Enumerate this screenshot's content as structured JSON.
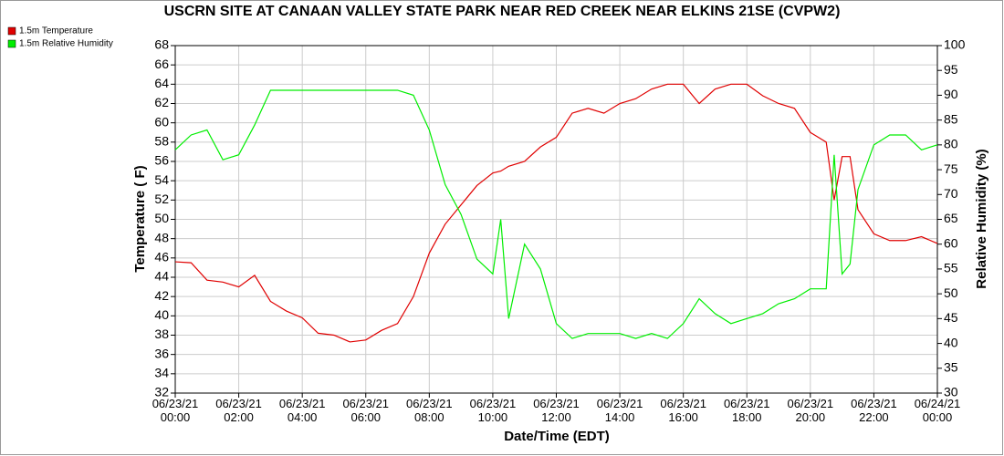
{
  "chart_data": {
    "type": "line",
    "title": "USCRN SITE AT CANAAN VALLEY STATE PARK NEAR RED CREEK NEAR ELKINS 21SE (CVPW2)",
    "x_label": "Date/Time (EDT)",
    "y_label": "Temperature ( F)",
    "y2_label": "Relative Humidity (%)",
    "x": [
      0,
      0.5,
      1,
      1.5,
      2,
      2.5,
      3,
      3.5,
      4,
      4.5,
      5,
      5.5,
      6,
      6.5,
      7,
      7.5,
      8,
      8.5,
      9,
      9.5,
      10,
      10.25,
      10.5,
      11,
      11.5,
      12,
      12.5,
      13,
      13.5,
      14,
      14.5,
      15,
      15.5,
      16,
      16.5,
      17,
      17.5,
      18,
      18.5,
      19,
      19.5,
      20,
      20.5,
      20.75,
      21,
      21.25,
      21.5,
      22,
      22.5,
      23,
      23.5,
      24
    ],
    "series": [
      {
        "name": "1.5m Temperature",
        "color": "#e00000",
        "values": [
          45.6,
          45.5,
          43.7,
          43.5,
          43.0,
          44.2,
          41.5,
          40.5,
          39.8,
          38.2,
          38.0,
          37.3,
          37.5,
          38.5,
          39.2,
          42,
          46.5,
          49.5,
          51.5,
          53.5,
          54.8,
          55,
          55.5,
          56,
          57.5,
          58.5,
          61,
          61.5,
          61,
          62,
          62.5,
          63.5,
          64,
          64,
          62,
          63.5,
          64,
          64,
          62.8,
          62,
          61.5,
          59,
          58,
          52,
          56.5,
          56.5,
          51,
          48.5,
          47.8,
          47.8,
          48.2,
          47.5
        ]
      },
      {
        "name": "1.5m Relative Humidity",
        "color": "#00ee00",
        "axis": "y2",
        "values": [
          79,
          82,
          83,
          77,
          78,
          84,
          91,
          91,
          91,
          91,
          91,
          91,
          91,
          91,
          91,
          90,
          83,
          72,
          66,
          57,
          54,
          65,
          45,
          60,
          55,
          44,
          41,
          42,
          42,
          42,
          41,
          42,
          41,
          44,
          49,
          46,
          44,
          45,
          46,
          48,
          49,
          51,
          51,
          78,
          54,
          56,
          71,
          80,
          82,
          82,
          79,
          80
        ]
      }
    ],
    "xlim": [
      0,
      24
    ],
    "xticks": [
      {
        "value": 0,
        "label": "06/23/21 00:00"
      },
      {
        "value": 2,
        "label": "06/23/21 02:00"
      },
      {
        "value": 4,
        "label": "06/23/21 04:00"
      },
      {
        "value": 6,
        "label": "06/23/21 06:00"
      },
      {
        "value": 8,
        "label": "06/23/21 08:00"
      },
      {
        "value": 10,
        "label": "06/23/21 10:00"
      },
      {
        "value": 12,
        "label": "06/23/21 12:00"
      },
      {
        "value": 14,
        "label": "06/23/21 14:00"
      },
      {
        "value": 16,
        "label": "06/23/21 16:00"
      },
      {
        "value": 18,
        "label": "06/23/21 18:00"
      },
      {
        "value": 20,
        "label": "06/23/21 20:00"
      },
      {
        "value": 22,
        "label": "06/23/21 22:00"
      },
      {
        "value": 24,
        "label": "06/24/21 00:00"
      }
    ],
    "ylim": [
      32,
      68
    ],
    "yticks": [
      32,
      34,
      36,
      38,
      40,
      42,
      44,
      46,
      48,
      50,
      52,
      54,
      56,
      58,
      60,
      62,
      64,
      66,
      68
    ],
    "y2lim": [
      30,
      100
    ],
    "y2ticks": [
      30,
      35,
      40,
      45,
      50,
      55,
      60,
      65,
      70,
      75,
      80,
      85,
      90,
      95,
      100
    ],
    "grid": true
  }
}
